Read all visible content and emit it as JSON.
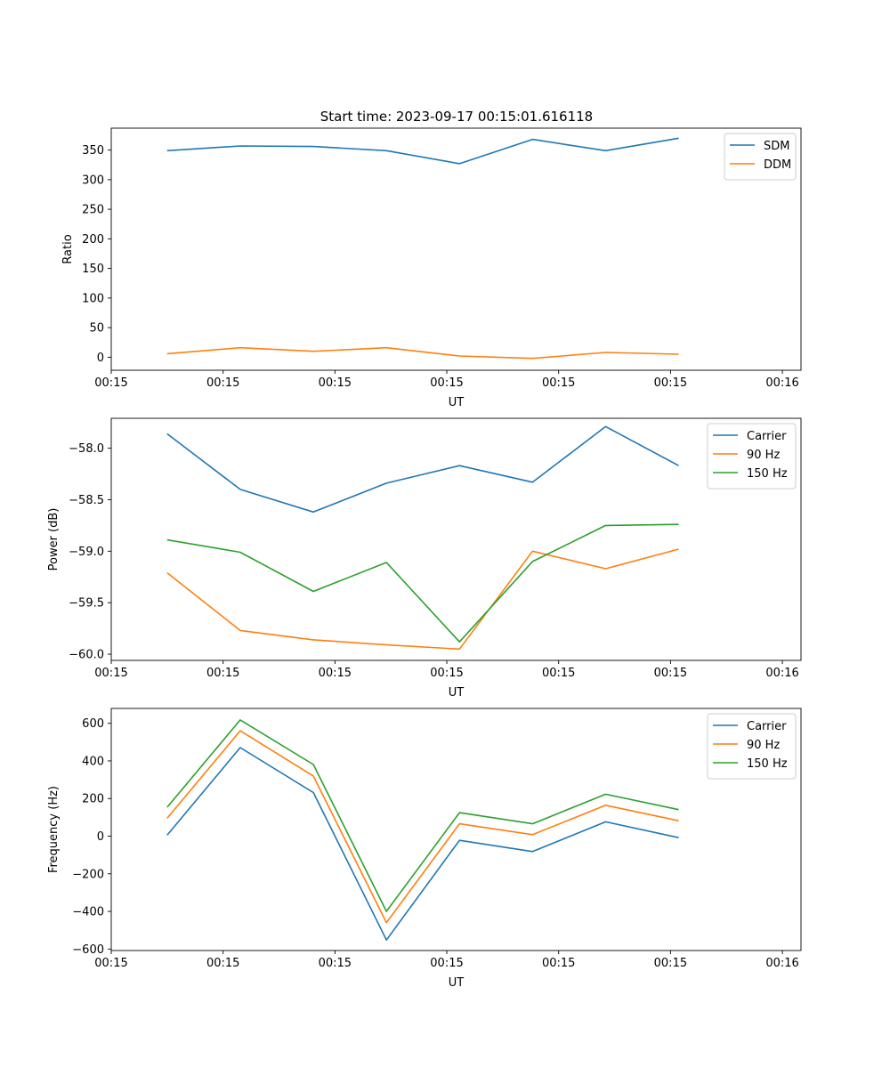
{
  "figure_title": "Start time: 2023-09-17 00:15:01.616118",
  "colors": {
    "blue": "#1f77b4",
    "orange": "#ff7f0e",
    "green": "#2ca02c"
  },
  "chart_data": [
    {
      "type": "line",
      "title": "Start time: 2023-09-17 00:15:01.616118",
      "xlabel": "UT",
      "ylabel": "Ratio",
      "xlim": [
        0,
        9.25
      ],
      "ylim": [
        -22,
        387
      ],
      "x_ticks": [
        0,
        1.5,
        3,
        4.5,
        6,
        7.5,
        9
      ],
      "x_tick_labels": [
        "00:15",
        "00:15",
        "00:15",
        "00:15",
        "00:15",
        "00:15",
        "00:16"
      ],
      "y_ticks": [
        0,
        50,
        100,
        150,
        200,
        250,
        300,
        350
      ],
      "y_tick_labels": [
        "0",
        "50",
        "100",
        "150",
        "200",
        "250",
        "300",
        "350"
      ],
      "legend_position": "top-right",
      "x": [
        0.75,
        1.73,
        2.71,
        3.69,
        4.67,
        5.65,
        6.63,
        7.61
      ],
      "series": [
        {
          "name": "SDM",
          "color": "#1f77b4",
          "values": [
            349,
            357,
            356,
            349,
            327,
            368,
            349,
            370
          ]
        },
        {
          "name": "DDM",
          "color": "#ff7f0e",
          "values": [
            6,
            16,
            10,
            16,
            2,
            -2,
            8,
            5
          ]
        }
      ]
    },
    {
      "type": "line",
      "xlabel": "UT",
      "ylabel": "Power (dB)",
      "xlim": [
        0,
        9.25
      ],
      "ylim": [
        -60.06,
        -57.71
      ],
      "x_ticks": [
        0,
        1.5,
        3,
        4.5,
        6,
        7.5,
        9
      ],
      "x_tick_labels": [
        "00:15",
        "00:15",
        "00:15",
        "00:15",
        "00:15",
        "00:15",
        "00:16"
      ],
      "y_ticks": [
        -60.0,
        -59.5,
        -59.0,
        -58.5,
        -58.0
      ],
      "y_tick_labels": [
        "−60.0",
        "−59.5",
        "−59.0",
        "−58.5",
        "−58.0"
      ],
      "legend_position": "top-right",
      "x": [
        0.75,
        1.73,
        2.71,
        3.69,
        4.67,
        5.65,
        6.63,
        7.61
      ],
      "series": [
        {
          "name": "Carrier",
          "color": "#1f77b4",
          "values": [
            -57.86,
            -58.4,
            -58.62,
            -58.34,
            -58.17,
            -58.33,
            -57.79,
            -58.17
          ]
        },
        {
          "name": "90 Hz",
          "color": "#ff7f0e",
          "values": [
            -59.21,
            -59.77,
            -59.86,
            -59.91,
            -59.95,
            -59.0,
            -59.17,
            -58.98
          ]
        },
        {
          "name": "150 Hz",
          "color": "#2ca02c",
          "values": [
            -58.89,
            -59.01,
            -59.39,
            -59.11,
            -59.88,
            -59.1,
            -58.75,
            -58.74
          ]
        }
      ]
    },
    {
      "type": "line",
      "xlabel": "UT",
      "ylabel": "Frequency (Hz)",
      "xlim": [
        0,
        9.25
      ],
      "ylim": [
        -608,
        679
      ],
      "x_ticks": [
        0,
        1.5,
        3,
        4.5,
        6,
        7.5,
        9
      ],
      "x_tick_labels": [
        "00:15",
        "00:15",
        "00:15",
        "00:15",
        "00:15",
        "00:15",
        "00:16"
      ],
      "y_ticks": [
        -600,
        -400,
        -200,
        0,
        200,
        400,
        600
      ],
      "y_tick_labels": [
        "−600",
        "−400",
        "−200",
        "0",
        "200",
        "400",
        "600"
      ],
      "legend_position": "top-right",
      "x": [
        0.75,
        1.73,
        2.71,
        3.69,
        4.67,
        5.65,
        6.63,
        7.61
      ],
      "series": [
        {
          "name": "Carrier",
          "color": "#1f77b4",
          "values": [
            5,
            471,
            232,
            -552,
            -22,
            -82,
            76,
            -8
          ]
        },
        {
          "name": "90 Hz",
          "color": "#ff7f0e",
          "values": [
            95,
            560,
            320,
            -460,
            66,
            8,
            164,
            82
          ]
        },
        {
          "name": "150 Hz",
          "color": "#2ca02c",
          "values": [
            154,
            618,
            381,
            -400,
            125,
            66,
            223,
            141
          ]
        }
      ]
    }
  ]
}
